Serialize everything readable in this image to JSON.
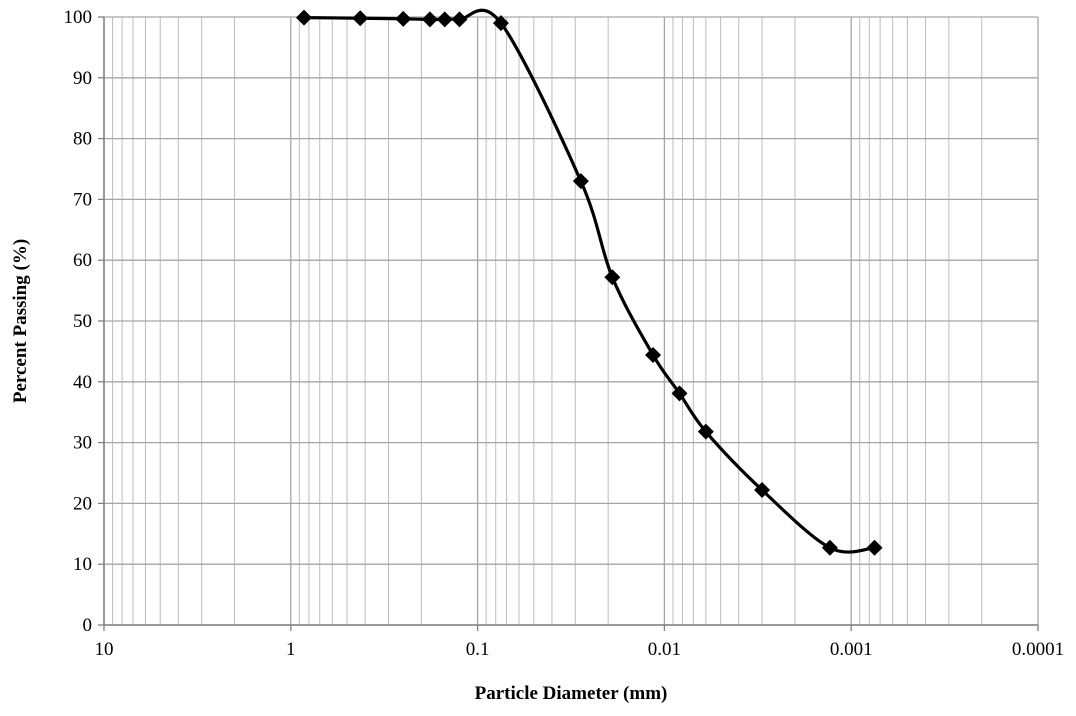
{
  "chart_data": {
    "type": "scatter",
    "title": "",
    "xlabel": "Particle Diameter (mm)",
    "ylabel": "Percent Passing (%)",
    "x_scale": "log",
    "x_reversed": true,
    "xlim": [
      10,
      0.0001
    ],
    "ylim": [
      0,
      100
    ],
    "x_tick_labels": [
      "10",
      "1",
      "0.1",
      "0.01",
      "0.001",
      "0.0001"
    ],
    "x_tick_values": [
      10,
      1,
      0.1,
      0.01,
      0.001,
      0.0001
    ],
    "y_tick_labels": [
      "0",
      "10",
      "20",
      "30",
      "40",
      "50",
      "60",
      "70",
      "80",
      "90",
      "100"
    ],
    "y_tick_values": [
      0,
      10,
      20,
      30,
      40,
      50,
      60,
      70,
      80,
      90,
      100
    ],
    "grid": "major and minor vertical, major horizontal",
    "legend": "none",
    "series": [
      {
        "marker": "diamond",
        "line": "smoothed",
        "color": "#000000",
        "x": [
          0.85,
          0.425,
          0.25,
          0.18,
          0.15,
          0.125,
          0.075,
          0.028,
          0.019,
          0.0115,
          0.0083,
          0.006,
          0.003,
          0.0013,
          0.00075
        ],
        "y": [
          99.9,
          99.8,
          99.7,
          99.6,
          99.6,
          99.6,
          99,
          73,
          57.2,
          44.4,
          38.1,
          31.8,
          22.2,
          12.7,
          12.7
        ]
      }
    ]
  }
}
